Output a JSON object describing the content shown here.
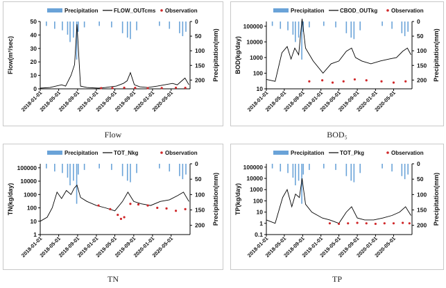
{
  "colors": {
    "precip": "#6aa3d8",
    "sim": "#000000",
    "obs": "#d0282a",
    "frame": "#c8c8c8"
  },
  "chart_data": [
    {
      "type": "line",
      "panel_title": "Flow",
      "legend": {
        "precip": "Precipitation",
        "sim": "FLOW_OUTcms",
        "obs": "Observation"
      },
      "ylabel": "Flow(m³/sec)",
      "y2label": "Precipitation(mm)",
      "y_scale": "linear",
      "ylim": [
        0,
        50
      ],
      "yticks": [
        "50",
        "40",
        "30",
        "20",
        "10",
        "0"
      ],
      "ytick_values": [
        50,
        40,
        30,
        20,
        10,
        0
      ],
      "y2ticks": [
        "0",
        "50",
        "100",
        "150",
        "200"
      ],
      "y2_range": [
        0,
        230
      ],
      "xlim": [
        "2018-01-01",
        "2020-09-01"
      ],
      "xticks": [
        "2018-01-01",
        "2018-05-01",
        "2018-09-01",
        "2019-01-01",
        "2019-05-01",
        "2019-09-01",
        "2020-01-01",
        "2020-05-01"
      ],
      "sim": {
        "x": [
          "2018-01-01",
          "2018-03-05",
          "2018-05-20",
          "2018-06-15",
          "2018-07-20",
          "2018-08-12",
          "2018-08-28",
          "2018-09-20",
          "2018-11-01",
          "2019-01-15",
          "2019-03-01",
          "2019-05-10",
          "2019-06-25",
          "2019-07-20",
          "2019-08-10",
          "2019-09-05",
          "2019-10-10",
          "2019-12-01",
          "2020-02-01",
          "2020-03-20",
          "2020-05-10",
          "2020-06-10",
          "2020-07-10",
          "2020-07-30",
          "2020-08-25"
        ],
        "y": [
          0.5,
          1,
          3,
          2,
          10,
          18,
          48,
          2,
          1,
          0.5,
          1,
          2,
          4,
          6,
          12,
          3,
          1.5,
          1,
          2,
          3,
          4,
          3,
          6,
          8,
          3
        ]
      },
      "obs": {
        "x": [
          "2019-02-01",
          "2019-04-15",
          "2019-07-01",
          "2019-09-10",
          "2019-12-01",
          "2020-03-01",
          "2020-06-01",
          "2020-08-01"
        ],
        "y": [
          0.5,
          0.6,
          0.8,
          0.7,
          0.5,
          0.6,
          0.8,
          0.7
        ]
      },
      "precip": {
        "x": [
          "2018-02-10",
          "2018-04-05",
          "2018-05-25",
          "2018-06-28",
          "2018-07-14",
          "2018-08-05",
          "2018-08-26",
          "2018-09-05",
          "2018-10-15",
          "2019-01-20",
          "2019-04-10",
          "2019-06-20",
          "2019-07-22",
          "2019-08-10",
          "2019-09-20",
          "2020-02-15",
          "2020-04-20",
          "2020-06-25",
          "2020-07-15",
          "2020-08-05"
        ],
        "y": [
          15,
          25,
          30,
          45,
          70,
          55,
          130,
          35,
          20,
          15,
          20,
          40,
          55,
          60,
          30,
          15,
          25,
          40,
          50,
          35
        ]
      }
    },
    {
      "type": "line",
      "panel_title": "BOD₅",
      "legend": {
        "precip": "Precipitation",
        "sim": "CBOD_OUTkg",
        "obs": "Observation"
      },
      "ylabel": "BOD(kg/day)",
      "y2label": "Precipitation(mm)",
      "y_scale": "log",
      "ylim": [
        10,
        200000
      ],
      "yticks": [
        "100000",
        "10000",
        "1000",
        "100",
        "10"
      ],
      "ytick_values": [
        100000,
        10000,
        1000,
        100,
        10
      ],
      "y2ticks": [
        "0",
        "50",
        "100",
        "150",
        "200"
      ],
      "y2_range": [
        0,
        230
      ],
      "xlim": [
        "2018-01-01",
        "2020-09-01"
      ],
      "xticks": [
        "2018-01-01",
        "2018-05-01",
        "2018-09-01",
        "2019-01-01",
        "2019-05-01",
        "2019-09-01",
        "2020-01-01",
        "2020-05-01"
      ],
      "sim": {
        "x": [
          "2018-01-01",
          "2018-03-01",
          "2018-04-15",
          "2018-05-20",
          "2018-06-15",
          "2018-07-10",
          "2018-08-05",
          "2018-08-28",
          "2018-09-20",
          "2018-11-10",
          "2019-01-15",
          "2019-03-10",
          "2019-05-01",
          "2019-06-20",
          "2019-07-25",
          "2019-08-20",
          "2019-10-01",
          "2019-12-01",
          "2020-02-01",
          "2020-04-01",
          "2020-05-20",
          "2020-07-01",
          "2020-08-01",
          "2020-08-25"
        ],
        "y": [
          40,
          30,
          2000,
          5000,
          800,
          4000,
          1500,
          300000,
          4000,
          600,
          100,
          400,
          600,
          2500,
          4000,
          1000,
          600,
          400,
          600,
          800,
          1000,
          2500,
          4000,
          1500
        ]
      },
      "obs": {
        "x": [
          "2018-10-15",
          "2019-01-10",
          "2019-03-20",
          "2019-06-01",
          "2019-08-15",
          "2019-11-01",
          "2020-02-10",
          "2020-05-01",
          "2020-07-20"
        ],
        "y": [
          30,
          35,
          25,
          30,
          40,
          35,
          30,
          25,
          30
        ]
      },
      "precip": {
        "x": [
          "2018-02-10",
          "2018-04-05",
          "2018-05-25",
          "2018-06-28",
          "2018-07-14",
          "2018-08-05",
          "2018-08-26",
          "2018-09-05",
          "2018-10-15",
          "2019-01-20",
          "2019-04-10",
          "2019-06-20",
          "2019-07-22",
          "2019-08-10",
          "2019-09-20",
          "2020-02-15",
          "2020-04-20",
          "2020-06-25",
          "2020-07-15",
          "2020-08-05"
        ],
        "y": [
          15,
          25,
          30,
          45,
          70,
          55,
          130,
          35,
          20,
          15,
          20,
          40,
          55,
          60,
          30,
          15,
          25,
          40,
          50,
          35
        ]
      }
    },
    {
      "type": "line",
      "panel_title": "TN",
      "legend": {
        "precip": "Precipitation",
        "sim": "TOT_Nkg",
        "obs": "Observation"
      },
      "ylabel": "TN(kg/day)",
      "y2label": "Precipitation(mm)",
      "y_scale": "log",
      "ylim": [
        1,
        200000
      ],
      "yticks": [
        "100000",
        "10000",
        "1000",
        "100",
        "10",
        "1"
      ],
      "ytick_values": [
        100000,
        10000,
        1000,
        100,
        10,
        1
      ],
      "y2ticks": [
        "0",
        "50",
        "100",
        "150",
        "200"
      ],
      "y2_range": [
        0,
        230
      ],
      "xlim": [
        "2018-01-01",
        "2020-09-01"
      ],
      "xticks": [
        "2018-01-01",
        "2018-05-01",
        "2018-09-01",
        "2019-01-01",
        "2019-05-01",
        "2019-09-01",
        "2020-01-01",
        "2020-05-01"
      ],
      "sim": {
        "x": [
          "2018-01-01",
          "2018-02-15",
          "2018-03-20",
          "2018-04-20",
          "2018-05-20",
          "2018-06-20",
          "2018-07-20",
          "2018-08-10",
          "2018-08-28",
          "2018-09-20",
          "2018-11-01",
          "2019-01-01",
          "2019-03-01",
          "2019-05-01",
          "2019-06-20",
          "2019-07-25",
          "2019-09-01",
          "2019-10-20",
          "2019-12-20",
          "2020-02-20",
          "2020-04-20",
          "2020-06-10",
          "2020-07-20",
          "2020-08-25"
        ],
        "y": [
          10,
          20,
          100,
          1500,
          500,
          2000,
          1000,
          3000,
          5000,
          600,
          300,
          150,
          100,
          60,
          300,
          1500,
          300,
          200,
          150,
          300,
          400,
          800,
          1500,
          300
        ]
      },
      "obs": {
        "x": [
          "2019-01-15",
          "2019-04-01",
          "2019-05-20",
          "2019-06-10",
          "2019-07-01",
          "2019-08-10",
          "2019-10-01",
          "2019-12-01",
          "2020-02-01",
          "2020-04-01",
          "2020-06-01",
          "2020-08-01"
        ],
        "y": [
          150,
          80,
          30,
          15,
          20,
          200,
          180,
          150,
          100,
          90,
          60,
          80
        ]
      },
      "precip": {
        "x": [
          "2018-02-10",
          "2018-04-05",
          "2018-05-25",
          "2018-06-28",
          "2018-07-14",
          "2018-08-05",
          "2018-08-26",
          "2018-09-05",
          "2018-10-15",
          "2019-01-20",
          "2019-04-10",
          "2019-06-20",
          "2019-07-22",
          "2019-08-10",
          "2019-09-20",
          "2020-02-15",
          "2020-04-20",
          "2020-06-25",
          "2020-07-15",
          "2020-08-05"
        ],
        "y": [
          15,
          25,
          30,
          45,
          70,
          55,
          130,
          35,
          20,
          15,
          20,
          40,
          55,
          60,
          30,
          15,
          25,
          40,
          50,
          35
        ]
      }
    },
    {
      "type": "line",
      "panel_title": "TP",
      "legend": {
        "precip": "Precipitation",
        "sim": "TOT_Pkg",
        "obs": "Observation"
      },
      "ylabel": "TP(kg/day)",
      "y2label": "Precipitation(mm)",
      "y_scale": "log",
      "ylim": [
        0.1,
        200000
      ],
      "yticks": [
        "100000",
        "10000",
        "1000",
        "100",
        "10",
        "1",
        "0.1"
      ],
      "ytick_values": [
        100000,
        10000,
        1000,
        100,
        10,
        1,
        0.1
      ],
      "y2ticks": [
        "0",
        "50",
        "100",
        "150",
        "200"
      ],
      "y2_range": [
        0,
        230
      ],
      "xlim": [
        "2018-01-01",
        "2020-09-01"
      ],
      "xticks": [
        "2018-01-01",
        "2018-05-01",
        "2018-09-01",
        "2019-01-01",
        "2019-05-01",
        "2019-09-01",
        "2020-01-01",
        "2020-05-01"
      ],
      "sim": {
        "x": [
          "2018-01-01",
          "2018-03-01",
          "2018-04-20",
          "2018-05-20",
          "2018-06-20",
          "2018-07-15",
          "2018-08-10",
          "2018-08-28",
          "2018-09-20",
          "2018-11-01",
          "2019-01-10",
          "2019-03-01",
          "2019-05-01",
          "2019-06-20",
          "2019-07-25",
          "2019-09-01",
          "2019-10-20",
          "2019-12-20",
          "2020-02-20",
          "2020-04-20",
          "2020-06-10",
          "2020-07-20",
          "2020-08-25"
        ],
        "y": [
          2,
          1,
          200,
          1000,
          30,
          400,
          200,
          10000,
          50,
          10,
          3,
          2,
          1,
          10,
          30,
          3,
          2,
          2,
          3,
          5,
          10,
          30,
          5
        ]
      },
      "obs": {
        "x": [
          "2019-03-01",
          "2019-05-01",
          "2019-07-01",
          "2019-09-01",
          "2019-11-01",
          "2020-01-01",
          "2020-03-01",
          "2020-05-01",
          "2020-07-01",
          "2020-08-15"
        ],
        "y": [
          1,
          0.9,
          1,
          1.1,
          1,
          0.9,
          1,
          1,
          1.1,
          1
        ]
      },
      "precip": {
        "x": [
          "2018-02-10",
          "2018-04-05",
          "2018-05-25",
          "2018-06-28",
          "2018-07-14",
          "2018-08-05",
          "2018-08-26",
          "2018-09-05",
          "2018-10-15",
          "2019-01-20",
          "2019-04-10",
          "2019-06-20",
          "2019-07-22",
          "2019-08-10",
          "2019-09-20",
          "2020-02-15",
          "2020-04-20",
          "2020-06-25",
          "2020-07-15",
          "2020-08-05"
        ],
        "y": [
          15,
          25,
          30,
          45,
          70,
          55,
          130,
          35,
          20,
          15,
          20,
          40,
          55,
          60,
          30,
          15,
          25,
          40,
          50,
          35
        ]
      }
    }
  ]
}
